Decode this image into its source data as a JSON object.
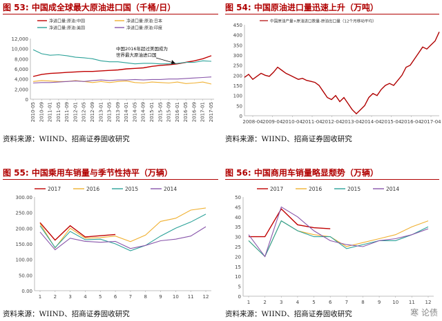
{
  "colors": {
    "red_title": "#b00000",
    "rule": "#b00000",
    "axis": "#999999"
  },
  "watermark": "寒 论债",
  "panels": [
    {
      "title": "图 53:  中国成全球最大原油进口国（千桶/日）",
      "source": "资料来源：WIIND、招商证券固收研究",
      "chart_data": {
        "type": "line",
        "xlabel": "",
        "ylabel": "",
        "ylim": [
          0,
          12000
        ],
        "yticks": [
          "0",
          "2,000",
          "4,000",
          "6,000",
          "8,000",
          "10,000",
          "12,000"
        ],
        "ytick_values": [
          0,
          2000,
          4000,
          6000,
          8000,
          10000,
          12000
        ],
        "categories": [
          "2010-05",
          "2010-09",
          "2011-01",
          "2011-05",
          "2011-09",
          "2012-01",
          "2012-05",
          "2012-09",
          "2013-01",
          "2013-05",
          "2013-09",
          "2014-01",
          "2014-05",
          "2014-09",
          "2015-01",
          "2015-05",
          "2015-09",
          "2016-01",
          "2016-05",
          "2016-09",
          "2017-01",
          "2017-05"
        ],
        "annotation": "中国2016年超过美国成为\n世界最大原油进口国",
        "legend_position": "top",
        "series": [
          {
            "name": "净进口量:原油:中国",
            "color": "#c00000",
            "values": [
              4500,
              4900,
              5100,
              5200,
              5300,
              5400,
              5500,
              5500,
              5600,
              5700,
              5800,
              6000,
              6100,
              6200,
              6500,
              6700,
              6800,
              7000,
              7300,
              7600,
              8000,
              8600
            ]
          },
          {
            "name": "净进口量:原油:日本",
            "color": "#f0b030",
            "values": [
              3500,
              3700,
              3600,
              3500,
              3500,
              3700,
              3500,
              3300,
              3500,
              3300,
              3500,
              3600,
              3300,
              3200,
              3400,
              3300,
              3200,
              3400,
              3100,
              3200,
              3400,
              3000
            ]
          },
          {
            "name": "净进口量:原油:美国",
            "color": "#2aa198",
            "values": [
              9800,
              9000,
              8700,
              8800,
              8600,
              8300,
              8200,
              8000,
              7600,
              7400,
              7400,
              7200,
              7000,
              7100,
              7100,
              7000,
              7000,
              7100,
              7300,
              7300,
              7600,
              7500
            ]
          },
          {
            "name": "净进口量:原油:印度",
            "color": "#8855aa",
            "values": [
              3200,
              3300,
              3300,
              3400,
              3500,
              3600,
              3500,
              3700,
              3800,
              3700,
              3800,
              3800,
              3900,
              3800,
              3900,
              3900,
              4000,
              4000,
              4100,
              4200,
              4300,
              4400
            ]
          }
        ]
      }
    },
    {
      "title": "图 54:  中国原油进口量迅速上升（万吨）",
      "source": "资料来源：WIIND、招商证券固收研究",
      "chart_data": {
        "type": "line",
        "xlabel": "",
        "ylabel": "",
        "ylim": [
          0,
          450
        ],
        "yticks": [
          "0",
          "50",
          "100",
          "150",
          "200",
          "250",
          "300",
          "350",
          "400",
          "450"
        ],
        "ytick_values": [
          0,
          50,
          100,
          150,
          200,
          250,
          300,
          350,
          400,
          450
        ],
        "categories": [
          "2008-04",
          "2009-04",
          "2010-04",
          "2011-04",
          "2012-04",
          "2013-04",
          "2014-04",
          "2015-04",
          "2016-04",
          "2017-04"
        ],
        "series": [
          {
            "name": "中国原油产量+原油进口数量-原油出口量（12个月移动平均）",
            "color": "#b00000",
            "x": [
              0,
              0.2,
              0.4,
              0.6,
              0.8,
              1.0,
              1.2,
              1.4,
              1.6,
              1.8,
              2.0,
              2.2,
              2.4,
              2.6,
              2.8,
              3.0,
              3.2,
              3.4,
              3.6,
              3.8,
              4.0,
              4.2,
              4.4,
              4.6,
              4.8,
              5.0,
              5.2,
              5.4,
              5.6,
              5.8,
              6.0,
              6.2,
              6.4,
              6.6,
              6.8,
              7.0,
              7.2,
              7.4,
              7.6,
              7.8,
              8.0,
              8.2,
              8.4,
              8.6,
              8.8,
              9.0,
              9.2,
              9.4
            ],
            "values": [
              190,
              205,
              180,
              195,
              210,
              200,
              195,
              215,
              240,
              225,
              210,
              200,
              190,
              180,
              185,
              175,
              170,
              165,
              150,
              120,
              90,
              80,
              100,
              70,
              90,
              60,
              30,
              10,
              30,
              50,
              90,
              110,
              100,
              130,
              150,
              160,
              150,
              175,
              200,
              240,
              250,
              280,
              310,
              340,
              330,
              350,
              370,
              415
            ]
          }
        ]
      }
    },
    {
      "title": "图 55:  中国乘用车销量与季节性持平（万辆）",
      "source": "资料来源：WIIND、招商证券固收研究",
      "chart_data": {
        "type": "line",
        "xlabel": "",
        "ylabel": "",
        "ylim": [
          0,
          300
        ],
        "yticks": [
          "0.00",
          "50.00",
          "100.00",
          "150.00",
          "200.00",
          "250.00",
          "300.00"
        ],
        "ytick_values": [
          0,
          50,
          100,
          150,
          200,
          250,
          300
        ],
        "categories": [
          "1",
          "2",
          "3",
          "4",
          "5",
          "6",
          "7",
          "8",
          "9",
          "10",
          "11",
          "12"
        ],
        "legend_position": "top",
        "series": [
          {
            "name": "2017",
            "color": "#c00000",
            "values": [
              218,
              162,
              208,
              172,
              176,
              180,
              null,
              null,
              null,
              null,
              null,
              null
            ]
          },
          {
            "name": "2016",
            "color": "#f0b030",
            "values": [
              215,
              137,
              200,
              168,
              170,
              175,
              157,
              178,
              222,
              232,
              258,
              265
            ]
          },
          {
            "name": "2015",
            "color": "#2aa198",
            "values": [
              208,
              138,
              190,
              163,
              165,
              150,
              128,
              145,
              175,
              200,
              220,
              245
            ]
          },
          {
            "name": "2014",
            "color": "#8855aa",
            "values": [
              188,
              131,
              168,
              158,
              155,
              158,
              135,
              145,
              160,
              165,
              175,
              205
            ]
          }
        ]
      }
    },
    {
      "title": "图 56:  中国商用车销量略显颓势（万辆）",
      "source": "资料来源：WIIND、招商证券固收研究",
      "chart_data": {
        "type": "line",
        "xlabel": "",
        "ylabel": "",
        "ylim": [
          0,
          50
        ],
        "yticks": [
          "0",
          "5",
          "10",
          "15",
          "20",
          "25",
          "30",
          "35",
          "40",
          "45",
          "50"
        ],
        "ytick_values": [
          0,
          5,
          10,
          15,
          20,
          25,
          30,
          35,
          40,
          45,
          50
        ],
        "categories": [
          "1",
          "2",
          "3",
          "4",
          "5",
          "6",
          "7",
          "8",
          "9",
          "10",
          "11",
          "12"
        ],
        "legend_position": "top",
        "series": [
          {
            "name": "2017",
            "color": "#c00000",
            "values": [
              30,
              30,
              44,
              36,
              34.5,
              34,
              null,
              null,
              null,
              null,
              null,
              null
            ]
          },
          {
            "name": "2016",
            "color": "#f0b030",
            "values": [
              28,
              20,
              38,
              33,
              31,
              30,
              25,
              27,
              29,
              31,
              35,
              38
            ]
          },
          {
            "name": "2015",
            "color": "#2aa198",
            "values": [
              28,
              20,
              38,
              33,
              30,
              30,
              24,
              26,
              28,
              28,
              31,
              35
            ]
          },
          {
            "name": "2014",
            "color": "#8855aa",
            "values": [
              31,
              20,
              45,
              40,
              33,
              28,
              26,
              25,
              28,
              29,
              31,
              34
            ]
          }
        ]
      }
    }
  ]
}
